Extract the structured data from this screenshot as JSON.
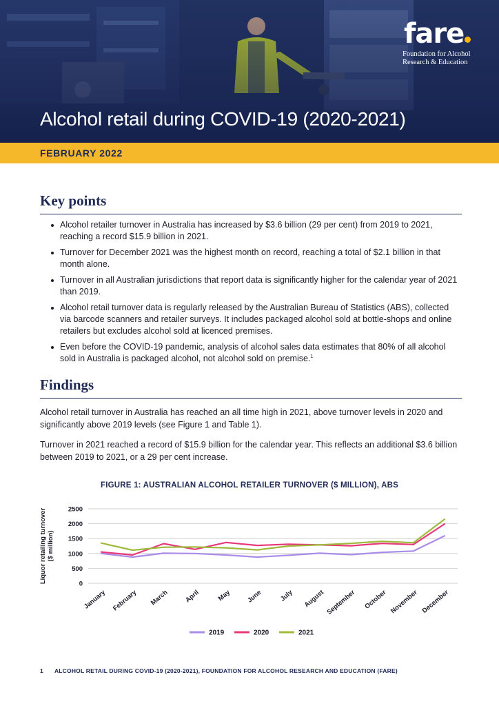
{
  "header": {
    "logo_word": "fare",
    "logo_tagline_1": "Foundation for Alcohol",
    "logo_tagline_2": "Research & Education",
    "title": "Alcohol retail during COVID-19 (2020-2021)",
    "date": "FEBRUARY 2022"
  },
  "key_points": {
    "heading": "Key points",
    "items": [
      "Alcohol retailer turnover in Australia has increased by $3.6 billion (29 per cent) from 2019 to 2021, reaching a record $15.9 billion in 2021.",
      "Turnover for December 2021 was the highest month on record, reaching a total of $2.1 billion in that month alone.",
      "Turnover in all Australian jurisdictions that report data is significantly higher for the calendar year of 2021 than 2019.",
      "Alcohol retail turnover data is regularly released by the Australian Bureau of Statistics (ABS), collected via barcode scanners and retailer surveys. It includes packaged alcohol sold at bottle-shops and online retailers but excludes alcohol sold at licenced premises.",
      "Even before the COVID-19 pandemic, analysis of alcohol sales data estimates that 80% of all alcohol sold in Australia is packaged alcohol, not alcohol sold on premise."
    ],
    "footnote_marker": "1"
  },
  "findings": {
    "heading": "Findings",
    "paragraph_1": "Alcohol retail turnover in Australia has reached an all time high in 2021, above turnover levels in 2020 and significantly above 2019 levels (see Figure 1 and Table 1).",
    "paragraph_2": "Turnover in 2021 reached a record of $15.9 billion for the calendar year. This reflects an additional $3.6 billion between 2019 to 2021, or a 29 per cent increase."
  },
  "figure": {
    "title": "FIGURE 1: AUSTRALIAN ALCOHOL RETAILER TURNOVER ($ MILLION), ABS"
  },
  "chart_data": {
    "type": "line",
    "title": "FIGURE 1: AUSTRALIAN ALCOHOL RETAILER TURNOVER ($ MILLION), ABS",
    "xlabel": "",
    "ylabel": "Liquor retailing turnover ($ million)",
    "categories": [
      "January",
      "February",
      "March",
      "April",
      "May",
      "June",
      "July",
      "August",
      "September",
      "October",
      "November",
      "December"
    ],
    "yticks": [
      0,
      500,
      1000,
      1500,
      2000,
      2500
    ],
    "ylim": [
      0,
      2500
    ],
    "grid": true,
    "legend_position": "bottom",
    "series": [
      {
        "name": "2019",
        "color": "#a98be8",
        "values": [
          1000,
          880,
          1010,
          1000,
          950,
          880,
          940,
          1010,
          960,
          1040,
          1080,
          1590
        ]
      },
      {
        "name": "2020",
        "color": "#e8397a",
        "values": [
          1050,
          950,
          1330,
          1140,
          1370,
          1270,
          1310,
          1290,
          1260,
          1340,
          1300,
          1990
        ]
      },
      {
        "name": "2021",
        "color": "#9dbb3a",
        "values": [
          1350,
          1110,
          1210,
          1220,
          1190,
          1120,
          1250,
          1290,
          1340,
          1410,
          1360,
          2150
        ]
      }
    ]
  },
  "footer": {
    "page_number": "1",
    "text": "ALCOHOL RETAIL DURING COVID-19 (2020-2021), FOUNDATION FOR ALCOHOL RESEARCH AND EDUCATION (FARE)"
  }
}
